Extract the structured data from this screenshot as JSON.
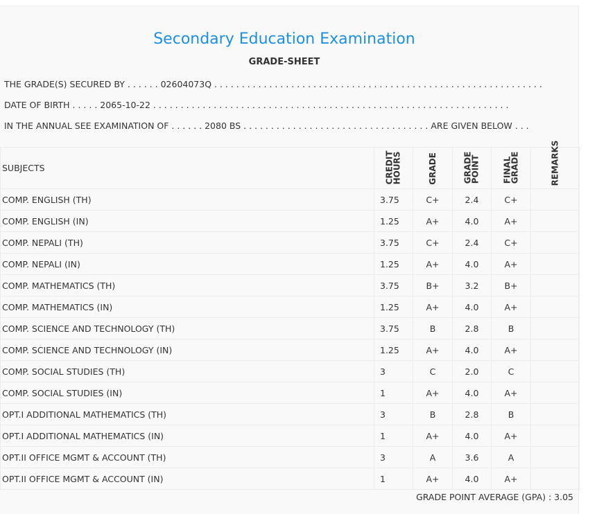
{
  "title": "Secondary Education Examination",
  "subtitle": "GRADE-SHEET",
  "info": {
    "line1": "THE GRADE(S) SECURED BY . . . . . . 02604073Q . . . . . . . . . . . . . . . . . . . . . . . . . . . . . . . . . . . . . . . . . . . . . . . . . . . . . . . . . . . .",
    "line2": "DATE OF BIRTH . . . . . 2065-10-22 . . . . . . . . . . . . . . . . . . . . . . . . . . . . . . . . . . . . . . . . . . . . . . . . . . . . . . . . . . . . . . . . .",
    "line3": "IN THE ANNUAL SEE EXAMINATION OF . . . . . . 2080 BS . . . . . . . . . . . . . . . . . . . . . . . . . . . . . . . . . . ARE GIVEN BELOW . . ."
  },
  "headers": {
    "subjects": "SUBJECTS",
    "credit1": "CREDIT",
    "credit2": "HOURS",
    "grade": "GRADE",
    "gp1": "GRADE",
    "gp2": "POINT",
    "fg1": "FINAL",
    "fg2": "GRADE",
    "remarks": "REMARKS"
  },
  "rows": [
    {
      "subject": "COMP. ENGLISH (TH)",
      "credit": "3.75",
      "grade": "C+",
      "gp": "2.4",
      "final": "C+"
    },
    {
      "subject": "COMP. ENGLISH (IN)",
      "credit": "1.25",
      "grade": "A+",
      "gp": "4.0",
      "final": "A+"
    },
    {
      "subject": "COMP. NEPALI (TH)",
      "credit": "3.75",
      "grade": "C+",
      "gp": "2.4",
      "final": "C+"
    },
    {
      "subject": "COMP. NEPALI (IN)",
      "credit": "1.25",
      "grade": "A+",
      "gp": "4.0",
      "final": "A+"
    },
    {
      "subject": "COMP. MATHEMATICS (TH)",
      "credit": "3.75",
      "grade": "B+",
      "gp": "3.2",
      "final": "B+"
    },
    {
      "subject": "COMP. MATHEMATICS (IN)",
      "credit": "1.25",
      "grade": "A+",
      "gp": "4.0",
      "final": "A+"
    },
    {
      "subject": "COMP. SCIENCE AND TECHNOLOGY (TH)",
      "credit": "3.75",
      "grade": "B",
      "gp": "2.8",
      "final": "B"
    },
    {
      "subject": "COMP. SCIENCE AND TECHNOLOGY (IN)",
      "credit": "1.25",
      "grade": "A+",
      "gp": "4.0",
      "final": "A+"
    },
    {
      "subject": "COMP. SOCIAL STUDIES (TH)",
      "credit": "3",
      "grade": "C",
      "gp": "2.0",
      "final": "C"
    },
    {
      "subject": "COMP. SOCIAL STUDIES (IN)",
      "credit": "1",
      "grade": "A+",
      "gp": "4.0",
      "final": "A+"
    },
    {
      "subject": "OPT.I ADDITIONAL MATHEMATICS (TH)",
      "credit": "3",
      "grade": "B",
      "gp": "2.8",
      "final": "B"
    },
    {
      "subject": "OPT.I ADDITIONAL MATHEMATICS (IN)",
      "credit": "1",
      "grade": "A+",
      "gp": "4.0",
      "final": "A+"
    },
    {
      "subject": "OPT.II OFFICE MGMT & ACCOUNT (TH)",
      "credit": "3",
      "grade": "A",
      "gp": "3.6",
      "final": "A"
    },
    {
      "subject": "OPT.II OFFICE MGMT & ACCOUNT (IN)",
      "credit": "1",
      "grade": "A+",
      "gp": "4.0",
      "final": "A+"
    }
  ],
  "gpa": "GRADE POINT AVERAGE (GPA) : 3.05"
}
